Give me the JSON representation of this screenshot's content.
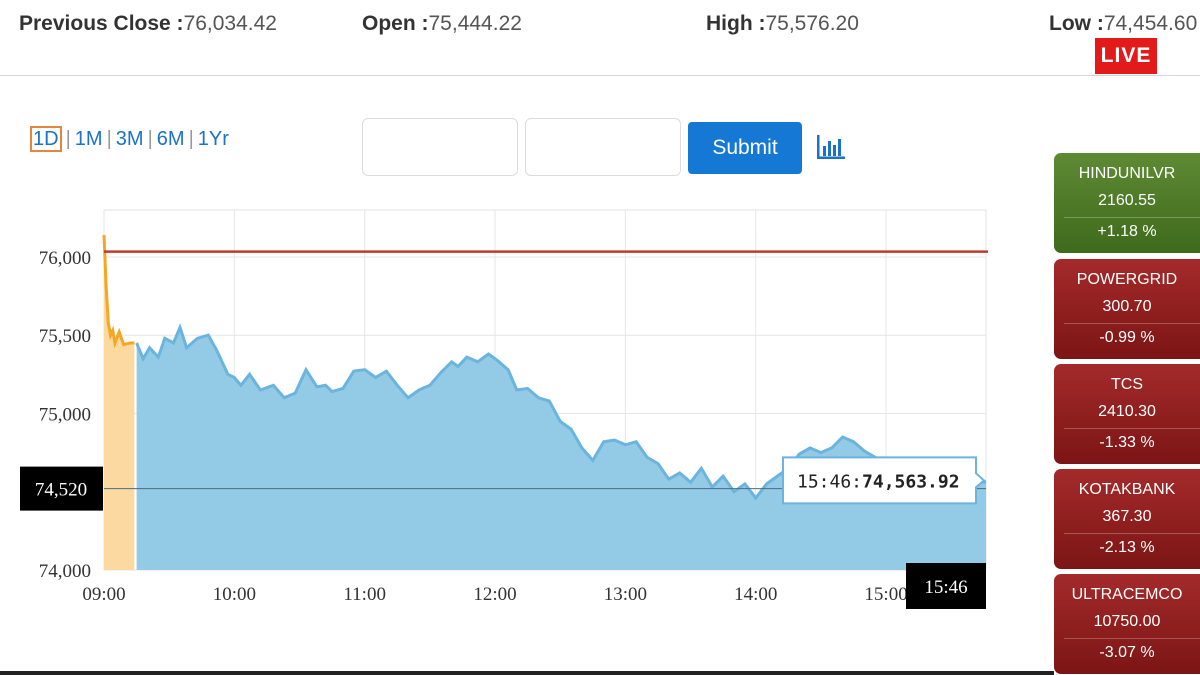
{
  "header": {
    "previous_close_label": "Previous Close :",
    "previous_close_value": "76,034.42",
    "open_label": "Open :",
    "open_value": "75,444.22",
    "high_label": "High :",
    "high_value": "75,576.20",
    "low_label": "Low :",
    "low_value": "74,454.60",
    "live_badge": "LIVE"
  },
  "controls": {
    "ranges": [
      "1D",
      "1M",
      "3M",
      "6M",
      "1Yr"
    ],
    "selected_range": "1D",
    "from_date_value": "",
    "to_date_value": "",
    "submit_label": "Submit",
    "chart_type_icon": "bar-chart-icon"
  },
  "chart_data": {
    "type": "area",
    "ylim": [
      74000,
      76300
    ],
    "xlim": [
      "09:00",
      "15:46"
    ],
    "y_ticks": [
      "74,000",
      "74,520",
      "75,000",
      "75,500",
      "76,000"
    ],
    "x_ticks": [
      "09:00",
      "10:00",
      "11:00",
      "12:00",
      "13:00",
      "14:00",
      "15:00",
      "15:46"
    ],
    "previous_close": 76034.42,
    "crosshair": {
      "y_label": "74,520",
      "x_label": "15:46",
      "y": 74520
    },
    "tooltip": {
      "time": "15:46:",
      "value": "74,563.92"
    },
    "colors": {
      "pre_open": "#f5a623",
      "pre_open_fill": "#fcd9a0",
      "line": "#6ab4de",
      "fill": "#93cbe6",
      "prev_close": "#c0392b"
    },
    "pre_open_series": {
      "x": [
        "09:00",
        "09:01",
        "09:02",
        "09:03",
        "09:04",
        "09:05",
        "09:07",
        "09:09",
        "09:12",
        "09:14"
      ],
      "y": [
        76140,
        75800,
        75580,
        75500,
        75530,
        75450,
        75520,
        75440,
        75450,
        75450
      ]
    },
    "series": {
      "x": [
        "09:15",
        "09:18",
        "09:21",
        "09:25",
        "09:28",
        "09:32",
        "09:35",
        "09:38",
        "09:43",
        "09:48",
        "09:52",
        "09:57",
        "10:00",
        "10:03",
        "10:07",
        "10:12",
        "10:18",
        "10:23",
        "10:28",
        "10:33",
        "10:38",
        "10:42",
        "10:45",
        "10:50",
        "10:55",
        "11:00",
        "11:05",
        "11:10",
        "11:15",
        "11:20",
        "11:25",
        "11:30",
        "11:35",
        "11:40",
        "11:43",
        "11:47",
        "11:52",
        "11:57",
        "12:01",
        "12:06",
        "12:10",
        "12:15",
        "12:20",
        "12:25",
        "12:30",
        "12:35",
        "12:40",
        "12:45",
        "12:50",
        "12:55",
        "13:00",
        "13:05",
        "13:10",
        "13:15",
        "13:20",
        "13:25",
        "13:30",
        "13:35",
        "13:40",
        "13:45",
        "13:50",
        "13:55",
        "14:00",
        "14:05",
        "14:10",
        "14:15",
        "14:20",
        "14:25",
        "14:30",
        "14:35",
        "14:40",
        "14:45",
        "14:50",
        "14:55",
        "15:00",
        "15:05",
        "15:10",
        "15:15",
        "15:20",
        "15:25",
        "15:30",
        "15:35",
        "15:40",
        "15:46"
      ],
      "y": [
        75450,
        75350,
        75420,
        75360,
        75480,
        75450,
        75550,
        75420,
        75480,
        75500,
        75400,
        75250,
        75230,
        75180,
        75250,
        75150,
        75180,
        75100,
        75130,
        75280,
        75170,
        75180,
        75140,
        75160,
        75270,
        75280,
        75230,
        75270,
        75180,
        75100,
        75150,
        75180,
        75260,
        75330,
        75300,
        75360,
        75330,
        75380,
        75340,
        75280,
        75150,
        75160,
        75100,
        75080,
        74950,
        74900,
        74780,
        74700,
        74820,
        74830,
        74800,
        74820,
        74720,
        74680,
        74580,
        74620,
        74560,
        74650,
        74530,
        74600,
        74500,
        74550,
        74460,
        74550,
        74600,
        74650,
        74740,
        74780,
        74750,
        74780,
        74850,
        74820,
        74760,
        74720,
        74680,
        74650,
        74620,
        74640,
        74600,
        74600,
        74580,
        74590,
        74570,
        74560
      ]
    }
  }
}
